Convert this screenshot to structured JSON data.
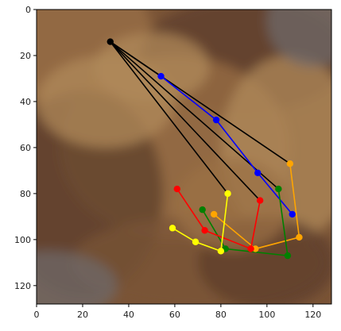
{
  "chart_data": {
    "type": "scatter",
    "title": "",
    "xlabel": "",
    "ylabel": "",
    "xlim": [
      0,
      128
    ],
    "ylim": [
      128,
      0
    ],
    "y_inverted": true,
    "grid": false,
    "legend": "none",
    "x_ticks": [
      "0",
      "20",
      "40",
      "60",
      "80",
      "100",
      "120"
    ],
    "y_ticks": [
      "0",
      "20",
      "40",
      "60",
      "80",
      "100",
      "120"
    ],
    "background": {
      "description": "blurry brown textured photo (hand pose overlay)",
      "palette": [
        "#7a5436",
        "#9b7046",
        "#5e3f2c",
        "#b08a5a",
        "#6f6a6a"
      ]
    },
    "root": {
      "x": 32,
      "y": 14,
      "color": "#000000"
    },
    "series": [
      {
        "color": "#0000ff",
        "points": [
          {
            "x": 54,
            "y": 29
          },
          {
            "x": 78,
            "y": 48
          },
          {
            "x": 96,
            "y": 71
          },
          {
            "x": 111,
            "y": 89
          }
        ]
      },
      {
        "color": "#ffa500",
        "points": [
          {
            "x": 110,
            "y": 67
          },
          {
            "x": 114,
            "y": 99
          },
          {
            "x": 95,
            "y": 104
          },
          {
            "x": 77,
            "y": 89
          }
        ]
      },
      {
        "color": "#008000",
        "points": [
          {
            "x": 105,
            "y": 78
          },
          {
            "x": 109,
            "y": 107
          },
          {
            "x": 82,
            "y": 104
          },
          {
            "x": 72,
            "y": 87
          }
        ]
      },
      {
        "color": "#ff0000",
        "points": [
          {
            "x": 97,
            "y": 83
          },
          {
            "x": 93,
            "y": 104
          },
          {
            "x": 73,
            "y": 96
          },
          {
            "x": 61,
            "y": 78
          }
        ]
      },
      {
        "color": "#ffff00",
        "points": [
          {
            "x": 83,
            "y": 80
          },
          {
            "x": 80,
            "y": 105
          },
          {
            "x": 69,
            "y": 101
          },
          {
            "x": 59,
            "y": 95
          }
        ]
      }
    ]
  }
}
